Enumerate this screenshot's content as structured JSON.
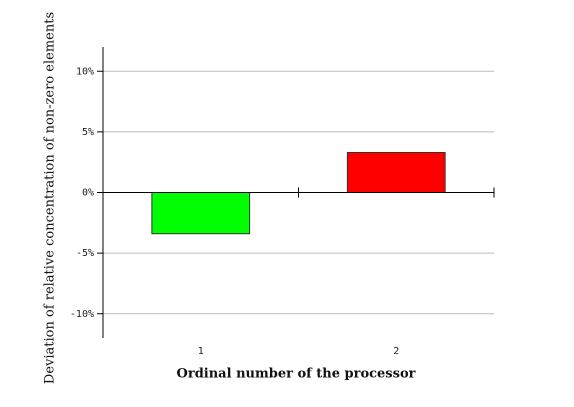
{
  "chart_data": {
    "type": "bar",
    "x_label": "Ordinal number of the processor",
    "y_label": "Deviation of relative concentration of non-zero elements",
    "categories": [
      "1",
      "2"
    ],
    "values": [
      -3.4,
      3.3
    ],
    "colors": [
      "#00ff00",
      "#ff0000"
    ],
    "ylim": [
      -12,
      12
    ],
    "yticks": [
      {
        "value": -10,
        "label": "-10%"
      },
      {
        "value": -5,
        "label": "-5%"
      },
      {
        "value": 0,
        "label": "0%"
      },
      {
        "value": 5,
        "label": "5%"
      },
      {
        "value": 10,
        "label": "10%"
      }
    ],
    "grid": true
  }
}
